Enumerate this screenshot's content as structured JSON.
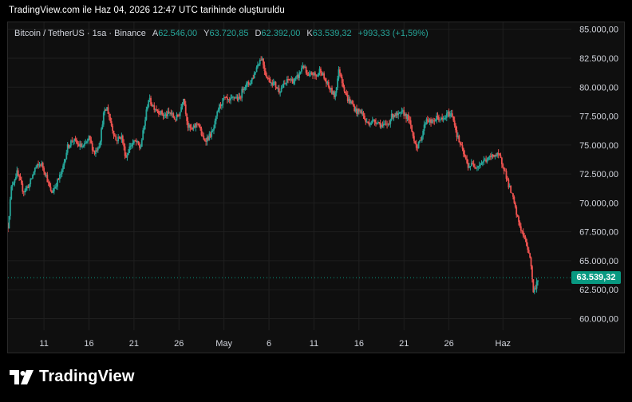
{
  "caption": "TradingView.com ile Haz 04, 2026 12:47 UTC tarihinde oluşturuldu",
  "legend": {
    "symbol": "Bitcoin / TetherUS · 1sa · Binance",
    "open_label": "A",
    "open_value": "62.546,00",
    "high_label": "Y",
    "high_value": "63.720,85",
    "low_label": "D",
    "low_value": "62.392,00",
    "close_label": "K",
    "close_value": "63.539,32",
    "change": "+993,33 (+1,59%)"
  },
  "last_price_label": "63.539,32",
  "brand": "TradingView",
  "colors": {
    "up": "#26a69a",
    "down": "#ef5350",
    "price_tag": "#089981",
    "grid": "#1f1f1f"
  },
  "chart_data": {
    "type": "candlestick",
    "symbol": "BTCUSDT",
    "interval": "1h",
    "y_ticks": [
      85000,
      82500,
      80000,
      77500,
      75000,
      72500,
      70000,
      67500,
      65000,
      62500,
      60000
    ],
    "y_tick_labels": [
      "85.000,00",
      "82.500,00",
      "80.000,00",
      "77.500,00",
      "75.000,00",
      "72.500,00",
      "70.000,00",
      "67.500,00",
      "65.000,00",
      "62.500,00",
      "60.000,00"
    ],
    "ylim": [
      59000,
      85600
    ],
    "x_ticks": [
      "11",
      "16",
      "21",
      "26",
      "May",
      "6",
      "11",
      "16",
      "21",
      "26",
      "Haz"
    ],
    "x_range": [
      "Apr 07",
      "Jun 04"
    ],
    "x_tick_dates": [
      11,
      16,
      21,
      26,
      31,
      36,
      41,
      46,
      51,
      56,
      62
    ],
    "last_price": 63539.32,
    "path": [
      [
        7.0,
        68000
      ],
      [
        7.4,
        71500
      ],
      [
        8.0,
        72600
      ],
      [
        8.7,
        71000
      ],
      [
        9.4,
        71600
      ],
      [
        10.0,
        73000
      ],
      [
        10.7,
        73400
      ],
      [
        11.2,
        72500
      ],
      [
        11.8,
        70800
      ],
      [
        12.4,
        71700
      ],
      [
        13.0,
        72700
      ],
      [
        13.6,
        74800
      ],
      [
        14.2,
        75500
      ],
      [
        14.8,
        75000
      ],
      [
        15.4,
        74800
      ],
      [
        16.0,
        75600
      ],
      [
        16.6,
        74300
      ],
      [
        17.2,
        75200
      ],
      [
        17.6,
        77600
      ],
      [
        18.0,
        78200
      ],
      [
        18.5,
        76700
      ],
      [
        19.0,
        75400
      ],
      [
        19.6,
        75800
      ],
      [
        20.1,
        73900
      ],
      [
        20.6,
        75000
      ],
      [
        21.2,
        75300
      ],
      [
        21.7,
        74700
      ],
      [
        22.1,
        76500
      ],
      [
        22.6,
        79000
      ],
      [
        23.2,
        78300
      ],
      [
        23.8,
        77900
      ],
      [
        24.4,
        77500
      ],
      [
        25.0,
        77800
      ],
      [
        25.6,
        77200
      ],
      [
        26.1,
        77800
      ],
      [
        26.5,
        79200
      ],
      [
        27.0,
        76600
      ],
      [
        27.5,
        76300
      ],
      [
        28.1,
        77000
      ],
      [
        28.7,
        75400
      ],
      [
        29.2,
        75600
      ],
      [
        29.8,
        76200
      ],
      [
        30.4,
        78200
      ],
      [
        31.0,
        79000
      ],
      [
        31.6,
        78700
      ],
      [
        32.2,
        79200
      ],
      [
        32.7,
        78900
      ],
      [
        33.2,
        80100
      ],
      [
        33.8,
        80300
      ],
      [
        34.3,
        81000
      ],
      [
        34.8,
        82100
      ],
      [
        35.2,
        82600
      ],
      [
        35.6,
        81200
      ],
      [
        36.0,
        80600
      ],
      [
        36.6,
        80300
      ],
      [
        37.1,
        79700
      ],
      [
        37.6,
        80100
      ],
      [
        38.2,
        80700
      ],
      [
        38.8,
        80500
      ],
      [
        39.3,
        81000
      ],
      [
        39.8,
        82000
      ],
      [
        40.3,
        80800
      ],
      [
        40.8,
        81200
      ],
      [
        41.3,
        80900
      ],
      [
        41.7,
        81600
      ],
      [
        42.2,
        80600
      ],
      [
        42.8,
        79800
      ],
      [
        43.3,
        79200
      ],
      [
        43.8,
        81600
      ],
      [
        44.2,
        80300
      ],
      [
        44.7,
        79000
      ],
      [
        45.2,
        78600
      ],
      [
        45.7,
        77900
      ],
      [
        46.3,
        77900
      ],
      [
        46.8,
        76900
      ],
      [
        47.4,
        77000
      ],
      [
        48.0,
        77100
      ],
      [
        48.6,
        76600
      ],
      [
        49.2,
        76800
      ],
      [
        49.8,
        77700
      ],
      [
        50.3,
        77500
      ],
      [
        50.9,
        77800
      ],
      [
        51.5,
        77300
      ],
      [
        52.0,
        75800
      ],
      [
        52.5,
        74700
      ],
      [
        53.0,
        75900
      ],
      [
        53.5,
        77300
      ],
      [
        54.1,
        76900
      ],
      [
        54.7,
        77400
      ],
      [
        55.3,
        77100
      ],
      [
        55.9,
        77700
      ],
      [
        56.4,
        77600
      ],
      [
        56.9,
        75800
      ],
      [
        57.5,
        74500
      ],
      [
        58.1,
        73200
      ],
      [
        58.6,
        73300
      ],
      [
        59.2,
        73200
      ],
      [
        59.8,
        73600
      ],
      [
        60.4,
        73800
      ],
      [
        61.0,
        74200
      ],
      [
        61.6,
        74000
      ],
      [
        62.1,
        73100
      ],
      [
        62.6,
        71600
      ],
      [
        63.1,
        70400
      ],
      [
        63.6,
        68700
      ],
      [
        64.1,
        67500
      ],
      [
        64.5,
        66700
      ],
      [
        65.0,
        65400
      ],
      [
        65.4,
        62200
      ],
      [
        65.7,
        63000
      ],
      [
        65.9,
        63539
      ]
    ]
  }
}
